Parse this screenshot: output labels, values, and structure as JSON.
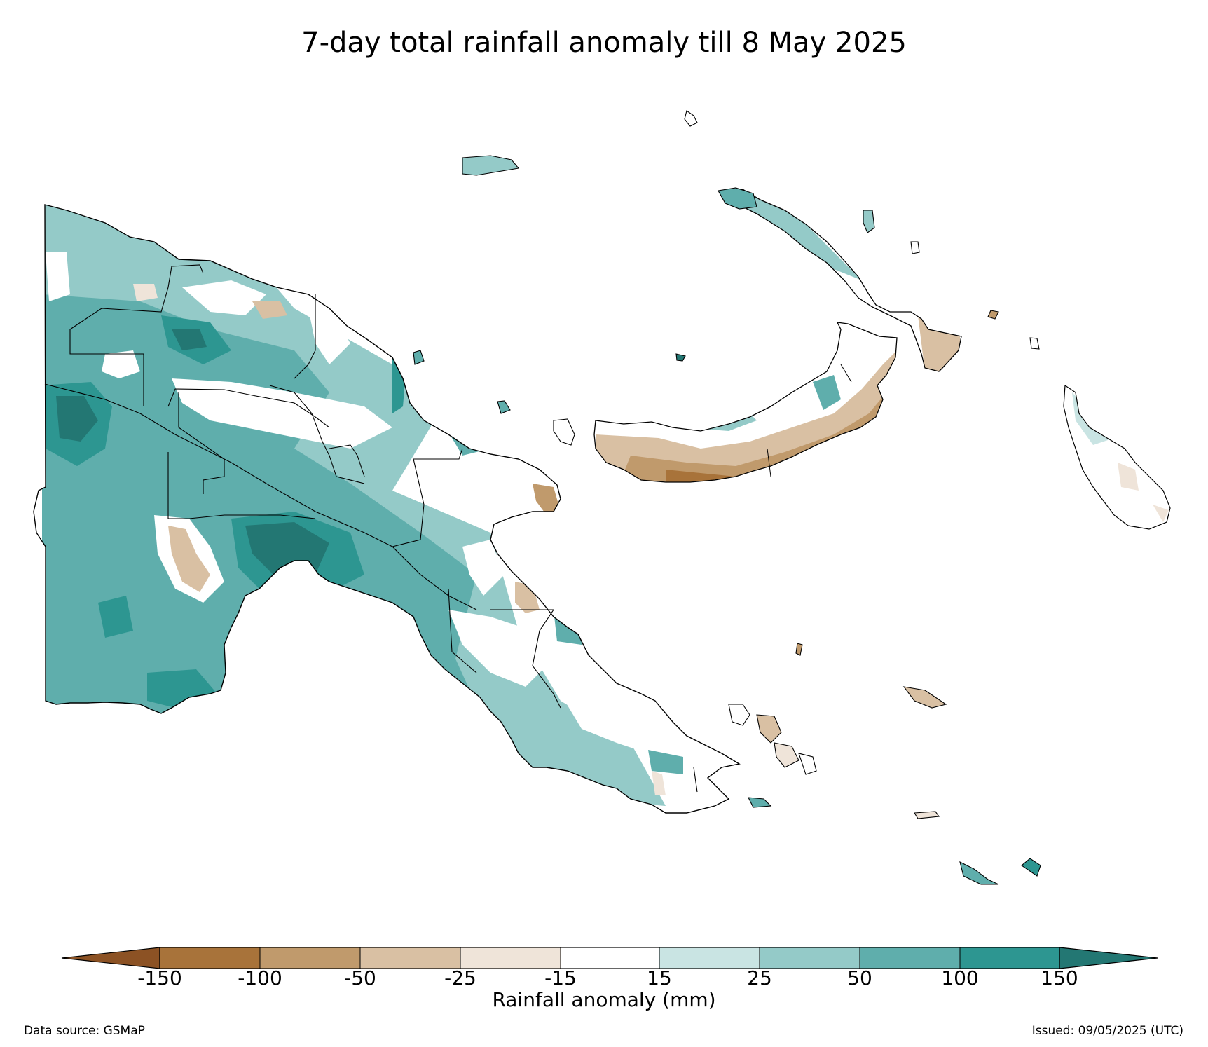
{
  "title": "7-day total rainfall anomaly till 8 May 2025",
  "colorbar": {
    "label": "Rainfall anomaly (mm)",
    "ticks": [
      "-150",
      "-100",
      "-50",
      "-25",
      "-15",
      "15",
      "25",
      "50",
      "100",
      "150"
    ],
    "bins": [
      {
        "range": "< -150",
        "color": "#8c5224"
      },
      {
        "range": "-150 to -100",
        "color": "#a8733a"
      },
      {
        "range": "-100 to -50",
        "color": "#c09a6c"
      },
      {
        "range": "-50 to -25",
        "color": "#d9c0a3"
      },
      {
        "range": "-25 to -15",
        "color": "#efe4d9"
      },
      {
        "range": "-15 to 15",
        "color": "#ffffff"
      },
      {
        "range": "15 to 25",
        "color": "#c9e4e3"
      },
      {
        "range": "25 to 50",
        "color": "#94cac8"
      },
      {
        "range": "50 to 100",
        "color": "#5faeac"
      },
      {
        "range": "100 to 150",
        "color": "#2d9691"
      },
      {
        "range": "> 150",
        "color": "#237773"
      }
    ]
  },
  "footer": {
    "source": "Data source: GSMaP",
    "issued": "Issued: 09/05/2025 (UTC)"
  },
  "map": {
    "regions": [
      "mainland-png",
      "new-britain",
      "new-ireland",
      "bougainville",
      "manus",
      "milne-bay-islands"
    ]
  }
}
